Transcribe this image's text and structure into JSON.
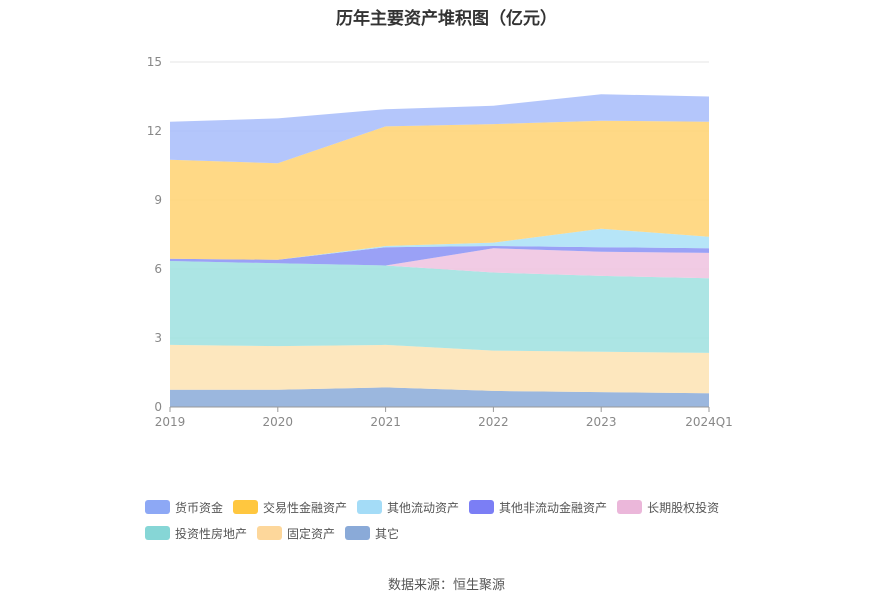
{
  "chart_data": {
    "type": "area",
    "stacked": true,
    "title": "历年主要资产堆积图（亿元）",
    "categories": [
      "2019",
      "2020",
      "2021",
      "2022",
      "2023",
      "2024Q1"
    ],
    "ylim": [
      0,
      15
    ],
    "yticks": [
      0,
      3,
      6,
      9,
      12,
      15
    ],
    "grid": true,
    "legend_position": "bottom",
    "series": [
      {
        "name": "其它",
        "color": "#8aaad8",
        "values": [
          0.75,
          0.75,
          0.85,
          0.7,
          0.65,
          0.6
        ]
      },
      {
        "name": "固定资产",
        "color": "#fde3b3",
        "values": [
          1.95,
          1.9,
          1.85,
          1.75,
          1.75,
          1.75
        ]
      },
      {
        "name": "投资性房地产",
        "color": "#9ee0df",
        "values": [
          3.65,
          3.6,
          3.45,
          3.4,
          3.3,
          3.25
        ]
      },
      {
        "name": "长期股权投资",
        "color": "#eec2df",
        "values": [
          0.0,
          0.0,
          0.0,
          1.05,
          1.05,
          1.1
        ]
      },
      {
        "name": "其他非流动金融资产",
        "color": "#8891f5",
        "values": [
          0.1,
          0.15,
          0.8,
          0.1,
          0.2,
          0.2
        ]
      },
      {
        "name": "其他流动资产",
        "color": "#a9e0f7",
        "values": [
          0.0,
          0.0,
          0.05,
          0.15,
          0.8,
          0.5
        ]
      },
      {
        "name": "交易性金融资产",
        "color": "#ffd271",
        "values": [
          4.3,
          4.2,
          5.2,
          5.15,
          4.7,
          5.0
        ]
      },
      {
        "name": "货币资金",
        "color": "#a7bcfa",
        "values": [
          1.65,
          1.95,
          0.75,
          0.8,
          1.15,
          1.1
        ]
      }
    ]
  },
  "legend": {
    "row1": [
      {
        "label": "货币资金",
        "color": "#8da8f5"
      },
      {
        "label": "交易性金融资产",
        "color": "#ffc73f"
      },
      {
        "label": "其他流动资产",
        "color": "#a4dcf7"
      },
      {
        "label": "其他非流动金融资产",
        "color": "#7b7ef5"
      },
      {
        "label": "长期股权投资",
        "color": "#ebb7da"
      }
    ],
    "row2": [
      {
        "label": "投资性房地产",
        "color": "#86d6d6"
      },
      {
        "label": "固定资产",
        "color": "#fdd79b"
      },
      {
        "label": "其它",
        "color": "#8aaad8"
      }
    ]
  },
  "source": "数据来源：恒生聚源"
}
